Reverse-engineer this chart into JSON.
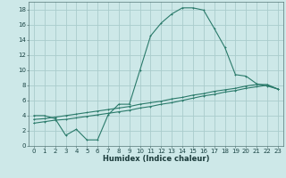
{
  "xlabel": "Humidex (Indice chaleur)",
  "ylabel": "",
  "bg_color": "#cde8e8",
  "grid_color": "#aacccc",
  "line_color": "#2a7a6a",
  "xlim": [
    -0.5,
    23.5
  ],
  "ylim": [
    0,
    19
  ],
  "xticks": [
    0,
    1,
    2,
    3,
    4,
    5,
    6,
    7,
    8,
    9,
    10,
    11,
    12,
    13,
    14,
    15,
    16,
    17,
    18,
    19,
    20,
    21,
    22,
    23
  ],
  "yticks": [
    0,
    2,
    4,
    6,
    8,
    10,
    12,
    14,
    16,
    18
  ],
  "curve1_x": [
    0,
    1,
    2,
    3,
    4,
    5,
    6,
    7,
    8,
    9,
    10,
    11,
    12,
    13,
    14,
    15,
    16,
    17,
    18,
    19,
    20,
    21,
    22,
    23
  ],
  "curve1_y": [
    4.0,
    4.0,
    3.6,
    1.4,
    2.2,
    0.8,
    0.8,
    4.1,
    5.5,
    5.5,
    10.0,
    14.5,
    16.2,
    17.4,
    18.2,
    18.2,
    17.9,
    15.5,
    13.0,
    9.4,
    9.2,
    8.2,
    7.9,
    7.5
  ],
  "curve2_x": [
    0,
    1,
    2,
    3,
    4,
    5,
    6,
    7,
    8,
    9,
    10,
    11,
    12,
    13,
    14,
    15,
    16,
    17,
    18,
    19,
    20,
    21,
    22,
    23
  ],
  "curve2_y": [
    3.0,
    3.2,
    3.4,
    3.5,
    3.7,
    3.9,
    4.1,
    4.3,
    4.5,
    4.7,
    5.0,
    5.2,
    5.5,
    5.7,
    6.0,
    6.3,
    6.6,
    6.8,
    7.1,
    7.3,
    7.6,
    7.8,
    8.0,
    7.5
  ],
  "curve3_x": [
    0,
    1,
    2,
    3,
    4,
    5,
    6,
    7,
    8,
    9,
    10,
    11,
    12,
    13,
    14,
    15,
    16,
    17,
    18,
    19,
    20,
    21,
    22,
    23
  ],
  "curve3_y": [
    3.5,
    3.6,
    3.8,
    4.0,
    4.2,
    4.4,
    4.6,
    4.8,
    5.0,
    5.2,
    5.5,
    5.7,
    5.9,
    6.2,
    6.4,
    6.7,
    6.9,
    7.2,
    7.4,
    7.6,
    7.9,
    8.1,
    8.1,
    7.5
  ],
  "tick_fontsize": 5.0,
  "xlabel_fontsize": 6.0,
  "lw": 0.8,
  "ms": 2.0
}
